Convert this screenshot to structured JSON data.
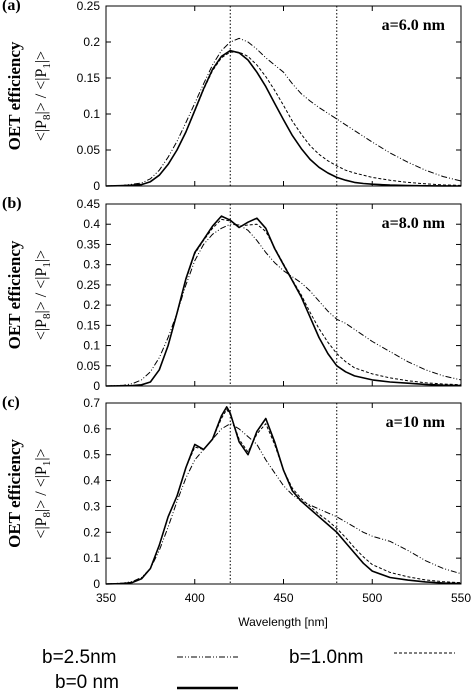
{
  "figure": {
    "xlabel": "Wavelength [nm]",
    "xticks": [
      350,
      400,
      450,
      500,
      550
    ],
    "ylabel_main": "OET efficiency",
    "ylabel_ratio": {
      "p_left": "<|P",
      "sub_8": "8",
      "p_mid": "|> / <|P",
      "sub_1": "1",
      "p_right": "|>"
    },
    "legend": [
      {
        "label": "b=2.5nm",
        "style": "dash-dot"
      },
      {
        "label": "b=1.0nm",
        "style": "dashed"
      },
      {
        "label": "b=0 nm",
        "style": "solid"
      }
    ]
  },
  "chart_data": [
    {
      "type": "line",
      "panel_label": "(a)",
      "annotation": "a=6.0 nm",
      "xlim": [
        350,
        550
      ],
      "ylim": [
        0,
        0.25
      ],
      "yticks": [
        "0",
        "0.05",
        "0.1",
        "0.15",
        "0.2",
        "0.25"
      ],
      "vlines": [
        420,
        480
      ],
      "series": [
        {
          "name": "b=0 nm",
          "style": "solid",
          "x": [
            350,
            360,
            370,
            375,
            380,
            385,
            390,
            395,
            400,
            405,
            410,
            415,
            420,
            425,
            430,
            435,
            440,
            445,
            450,
            455,
            460,
            465,
            470,
            475,
            480,
            485,
            490,
            495,
            500,
            510,
            520,
            530,
            540,
            550
          ],
          "y": [
            0,
            0.0005,
            0.002,
            0.006,
            0.015,
            0.03,
            0.05,
            0.075,
            0.105,
            0.135,
            0.162,
            0.18,
            0.188,
            0.185,
            0.175,
            0.158,
            0.138,
            0.115,
            0.092,
            0.07,
            0.052,
            0.037,
            0.026,
            0.018,
            0.012,
            0.008,
            0.005,
            0.0035,
            0.0025,
            0.0012,
            0.0006,
            0.0003,
            0.0001,
            0
          ]
        },
        {
          "name": "b=1.0nm",
          "style": "dashed",
          "x": [
            350,
            360,
            370,
            375,
            380,
            385,
            390,
            395,
            400,
            405,
            410,
            415,
            420,
            425,
            430,
            435,
            440,
            445,
            450,
            455,
            460,
            465,
            470,
            475,
            480,
            485,
            490,
            495,
            500,
            510,
            520,
            530,
            540,
            550
          ],
          "y": [
            0,
            0.0005,
            0.002,
            0.006,
            0.015,
            0.03,
            0.05,
            0.075,
            0.104,
            0.134,
            0.16,
            0.178,
            0.186,
            0.186,
            0.18,
            0.168,
            0.152,
            0.133,
            0.112,
            0.09,
            0.072,
            0.056,
            0.044,
            0.035,
            0.028,
            0.022,
            0.018,
            0.015,
            0.012,
            0.008,
            0.005,
            0.003,
            0.0015,
            0.0008
          ]
        },
        {
          "name": "b=2.5nm",
          "style": "dash-dot",
          "x": [
            350,
            360,
            370,
            375,
            380,
            385,
            390,
            395,
            400,
            405,
            410,
            415,
            420,
            425,
            430,
            435,
            440,
            445,
            450,
            455,
            460,
            465,
            470,
            475,
            480,
            485,
            490,
            495,
            500,
            510,
            520,
            530,
            540,
            550
          ],
          "y": [
            0,
            0.001,
            0.004,
            0.01,
            0.022,
            0.04,
            0.062,
            0.088,
            0.115,
            0.142,
            0.168,
            0.188,
            0.2,
            0.205,
            0.2,
            0.19,
            0.178,
            0.168,
            0.158,
            0.142,
            0.128,
            0.118,
            0.109,
            0.101,
            0.093,
            0.085,
            0.077,
            0.069,
            0.061,
            0.046,
            0.033,
            0.022,
            0.013,
            0.007
          ]
        }
      ]
    },
    {
      "type": "line",
      "panel_label": "(b)",
      "annotation": "a=8.0 nm",
      "xlim": [
        350,
        550
      ],
      "ylim": [
        0,
        0.45
      ],
      "yticks": [
        "0",
        "0.05",
        "0.1",
        "0.15",
        "0.2",
        "0.25",
        "0.3",
        "0.35",
        "0.4",
        "0.45"
      ],
      "vlines": [
        420,
        480
      ],
      "series": [
        {
          "name": "b=0 nm",
          "style": "solid",
          "x": [
            350,
            365,
            370,
            375,
            380,
            385,
            390,
            395,
            400,
            405,
            410,
            415,
            420,
            425,
            430,
            435,
            440,
            445,
            450,
            455,
            460,
            465,
            470,
            475,
            480,
            485,
            490,
            500,
            510,
            520,
            530,
            540,
            550
          ],
          "y": [
            0,
            0.001,
            0.003,
            0.01,
            0.04,
            0.1,
            0.18,
            0.265,
            0.33,
            0.362,
            0.395,
            0.42,
            0.41,
            0.392,
            0.405,
            0.415,
            0.39,
            0.34,
            0.3,
            0.26,
            0.22,
            0.17,
            0.12,
            0.08,
            0.05,
            0.035,
            0.025,
            0.015,
            0.01,
            0.007,
            0.004,
            0.002,
            0.001
          ]
        },
        {
          "name": "b=1.0nm",
          "style": "dashed",
          "x": [
            350,
            365,
            370,
            375,
            380,
            385,
            390,
            395,
            400,
            405,
            410,
            415,
            420,
            425,
            430,
            435,
            440,
            445,
            450,
            455,
            460,
            465,
            470,
            475,
            480,
            485,
            490,
            500,
            510,
            520,
            530,
            540,
            550
          ],
          "y": [
            0,
            0.001,
            0.003,
            0.01,
            0.04,
            0.1,
            0.18,
            0.262,
            0.327,
            0.36,
            0.39,
            0.412,
            0.408,
            0.395,
            0.398,
            0.4,
            0.382,
            0.342,
            0.302,
            0.262,
            0.225,
            0.182,
            0.142,
            0.108,
            0.08,
            0.06,
            0.045,
            0.03,
            0.02,
            0.013,
            0.008,
            0.005,
            0.003
          ]
        },
        {
          "name": "b=2.5nm",
          "style": "dash-dot",
          "x": [
            350,
            360,
            365,
            370,
            375,
            380,
            385,
            390,
            395,
            400,
            405,
            410,
            415,
            420,
            425,
            430,
            435,
            440,
            445,
            450,
            455,
            460,
            465,
            470,
            475,
            480,
            485,
            490,
            495,
            500,
            510,
            520,
            530,
            540,
            550
          ],
          "y": [
            0,
            0.002,
            0.006,
            0.015,
            0.035,
            0.07,
            0.12,
            0.18,
            0.25,
            0.31,
            0.35,
            0.375,
            0.39,
            0.4,
            0.398,
            0.385,
            0.36,
            0.33,
            0.305,
            0.285,
            0.27,
            0.255,
            0.235,
            0.21,
            0.185,
            0.165,
            0.155,
            0.14,
            0.125,
            0.11,
            0.085,
            0.06,
            0.04,
            0.025,
            0.015
          ]
        }
      ]
    },
    {
      "type": "line",
      "panel_label": "(c)",
      "annotation": "a=10 nm",
      "xlim": [
        350,
        550
      ],
      "ylim": [
        0,
        0.7
      ],
      "yticks": [
        "0",
        "0.1",
        "0.2",
        "0.3",
        "0.4",
        "0.5",
        "0.6",
        "0.7"
      ],
      "vlines": [
        420,
        480
      ],
      "series": [
        {
          "name": "b=0 nm",
          "style": "solid",
          "x": [
            350,
            360,
            365,
            370,
            375,
            380,
            385,
            390,
            395,
            400,
            405,
            410,
            415,
            418,
            420,
            425,
            430,
            435,
            440,
            445,
            450,
            455,
            460,
            465,
            470,
            475,
            480,
            485,
            490,
            495,
            500,
            510,
            520,
            530,
            540,
            550
          ],
          "y": [
            0,
            0.002,
            0.006,
            0.02,
            0.06,
            0.15,
            0.26,
            0.34,
            0.45,
            0.54,
            0.52,
            0.56,
            0.65,
            0.685,
            0.66,
            0.55,
            0.5,
            0.59,
            0.64,
            0.55,
            0.44,
            0.36,
            0.32,
            0.29,
            0.26,
            0.23,
            0.2,
            0.16,
            0.12,
            0.08,
            0.05,
            0.025,
            0.015,
            0.008,
            0.004,
            0.002
          ]
        },
        {
          "name": "b=1.0nm",
          "style": "dashed",
          "x": [
            350,
            360,
            365,
            370,
            375,
            380,
            385,
            390,
            395,
            400,
            405,
            410,
            415,
            418,
            420,
            425,
            430,
            435,
            440,
            445,
            450,
            455,
            460,
            465,
            470,
            475,
            480,
            485,
            490,
            495,
            500,
            510,
            520,
            530,
            540,
            550
          ],
          "y": [
            0,
            0.002,
            0.006,
            0.02,
            0.06,
            0.15,
            0.26,
            0.34,
            0.45,
            0.53,
            0.52,
            0.56,
            0.64,
            0.675,
            0.655,
            0.56,
            0.51,
            0.58,
            0.62,
            0.54,
            0.44,
            0.37,
            0.33,
            0.3,
            0.27,
            0.245,
            0.215,
            0.18,
            0.14,
            0.105,
            0.075,
            0.045,
            0.028,
            0.016,
            0.009,
            0.005
          ]
        },
        {
          "name": "b=2.5nm",
          "style": "dash-dot",
          "x": [
            350,
            360,
            365,
            370,
            375,
            380,
            385,
            390,
            395,
            400,
            405,
            410,
            415,
            420,
            425,
            430,
            435,
            440,
            445,
            450,
            455,
            460,
            465,
            470,
            475,
            480,
            485,
            490,
            495,
            500,
            505,
            510,
            520,
            530,
            540,
            550
          ],
          "y": [
            0,
            0.004,
            0.01,
            0.025,
            0.06,
            0.13,
            0.22,
            0.32,
            0.41,
            0.48,
            0.52,
            0.56,
            0.6,
            0.62,
            0.6,
            0.57,
            0.54,
            0.48,
            0.43,
            0.38,
            0.345,
            0.32,
            0.305,
            0.29,
            0.275,
            0.26,
            0.24,
            0.22,
            0.2,
            0.185,
            0.175,
            0.165,
            0.13,
            0.09,
            0.06,
            0.04
          ]
        }
      ]
    }
  ]
}
